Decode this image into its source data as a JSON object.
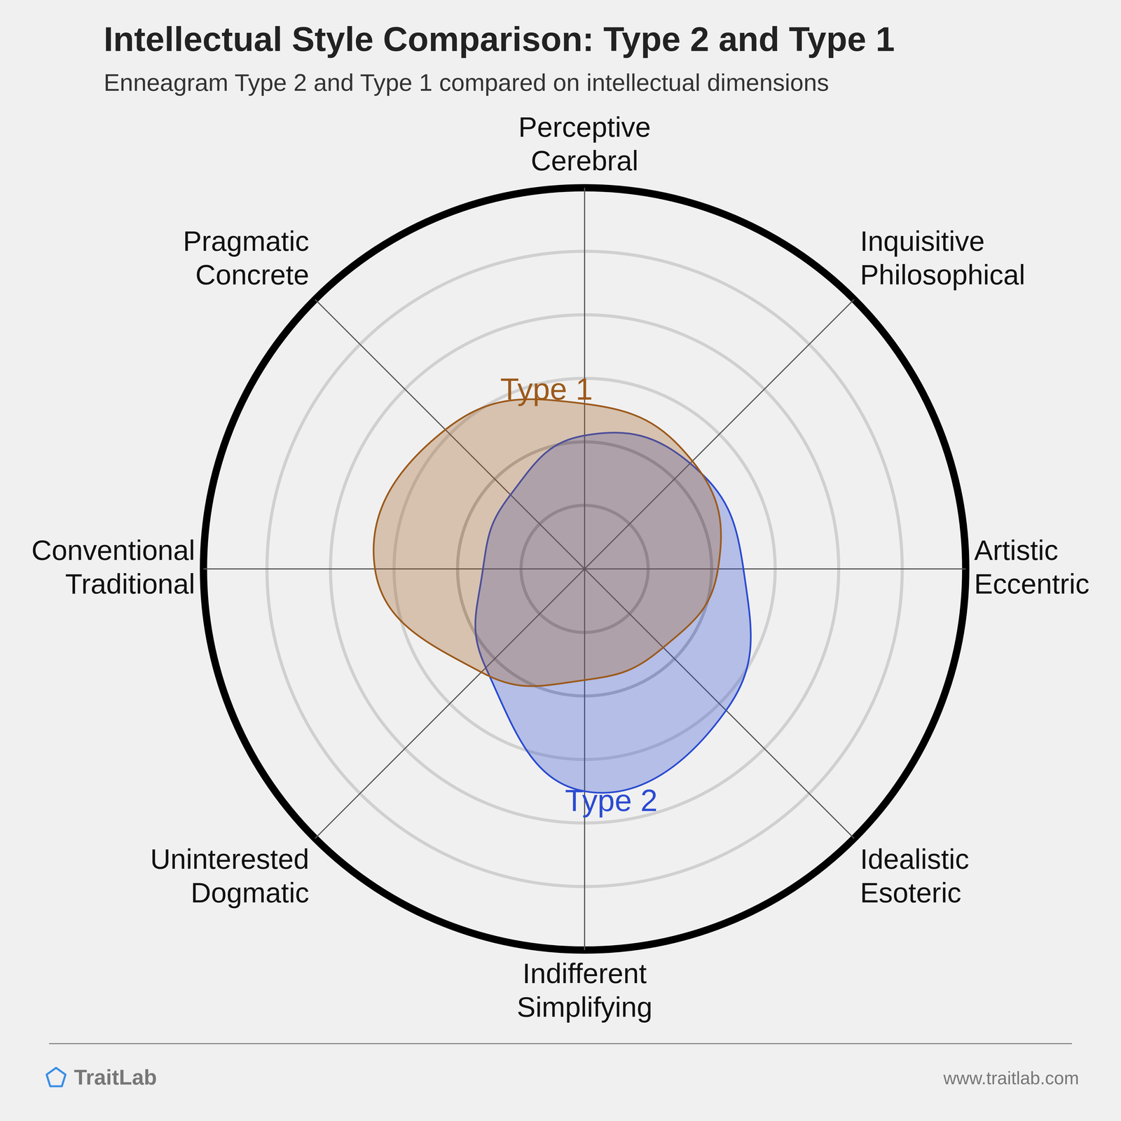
{
  "chart_data": {
    "type": "radar",
    "title": "Intellectual Style Comparison: Type 2 and Type 1",
    "subtitle": "Enneagram Type 2 and Type 1 compared on intellectual dimensions",
    "categories": [
      [
        "Perceptive",
        "Cerebral"
      ],
      [
        "Inquisitive",
        "Philosophical"
      ],
      [
        "Artistic",
        "Eccentric"
      ],
      [
        "Idealistic",
        "Esoteric"
      ],
      [
        "Indifferent",
        "Simplifying"
      ],
      [
        "Uninterested",
        "Dogmatic"
      ],
      [
        "Conventional",
        "Traditional"
      ],
      [
        "Pragmatic",
        "Concrete"
      ]
    ],
    "series": [
      {
        "name": "Type 1",
        "color": "#9c5a1c",
        "values": [
          2.6,
          2.4,
          2.1,
          1.75,
          1.75,
          2.3,
          3.3,
          3.1
        ]
      },
      {
        "name": "Type 2",
        "color": "#2b4bd1",
        "values": [
          2.1,
          2.35,
          2.5,
          3.15,
          3.5,
          2.2,
          1.6,
          1.65
        ]
      }
    ],
    "ylim": [
      0,
      6
    ],
    "yticks": [
      0,
      1,
      2,
      3,
      4,
      5,
      6
    ],
    "grid": true,
    "tick_labels": false
  },
  "footer": {
    "brand": "TraitLab",
    "url": "www.traitlab.com"
  }
}
